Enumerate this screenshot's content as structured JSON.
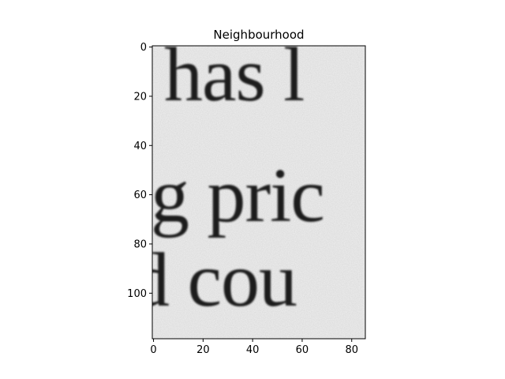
{
  "figure": {
    "title": "Neighbourhood",
    "image": {
      "kind": "grayscale scan crop of printed serif text",
      "lines": [
        "has l",
        "g pric",
        "d cou"
      ],
      "colormap": "gray",
      "paper_color": "#f0f0f0",
      "ink_color": "#1b1b1b"
    },
    "x_axis": {
      "ticks": [
        "0",
        "20",
        "40",
        "60",
        "80"
      ],
      "range": [
        -0.5,
        85.5
      ]
    },
    "y_axis": {
      "ticks": [
        "0",
        "20",
        "40",
        "60",
        "80",
        "100"
      ],
      "range": [
        -0.5,
        118.5
      ],
      "inverted": true
    }
  }
}
